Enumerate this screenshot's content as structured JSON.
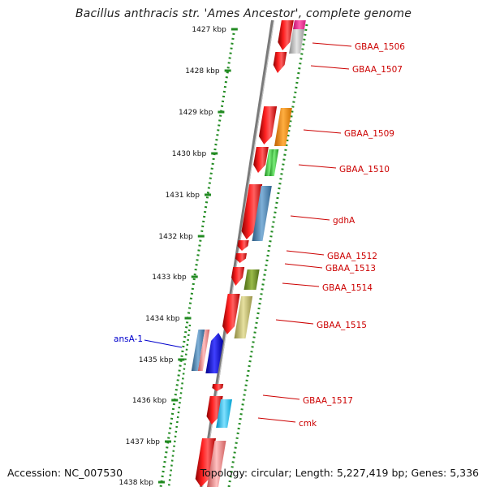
{
  "title": "Bacillus anthracis str. 'Ames Ancestor', complete genome",
  "footer": {
    "accession": "Accession: NC_007530",
    "summary": "Topology: circular; Length: 5,227,419 bp; Genes: 5,336"
  },
  "kbp_ticks": [
    "1427 kbp",
    "1428 kbp",
    "1429 kbp",
    "1430 kbp",
    "1431 kbp",
    "1432 kbp",
    "1433 kbp",
    "1434 kbp",
    "1435 kbp",
    "1436 kbp",
    "1437 kbp",
    "1438 kbp"
  ],
  "gene_labels": [
    {
      "text": "GBAA_1506",
      "color": "#cc0000"
    },
    {
      "text": "GBAA_1507",
      "color": "#cc0000"
    },
    {
      "text": "GBAA_1509",
      "color": "#cc0000"
    },
    {
      "text": "GBAA_1510",
      "color": "#cc0000"
    },
    {
      "text": "gdhA",
      "color": "#cc0000"
    },
    {
      "text": "GBAA_1512",
      "color": "#cc0000"
    },
    {
      "text": "GBAA_1513",
      "color": "#cc0000"
    },
    {
      "text": "GBAA_1514",
      "color": "#cc0000"
    },
    {
      "text": "GBAA_1515",
      "color": "#cc0000"
    },
    {
      "text": "ansA-1",
      "color": "#0000cc"
    },
    {
      "text": "GBAA_1517",
      "color": "#cc0000"
    },
    {
      "text": "cmk",
      "color": "#cc0000"
    }
  ],
  "colors": {
    "backbone": "#808080",
    "tick_dots": "#228b22",
    "forward_gene": "#ff0000",
    "pink_gene": "#ff1493",
    "silver_gene": "#c0c0c0",
    "orange_gene": "#ff8c00",
    "green_gene": "#32cd32",
    "steelblue_gene": "#4682b4",
    "olive_gene": "#6b8e23",
    "khaki_gene": "#bdb76b",
    "salmon_gene": "#f08080",
    "blue_gene": "#0000ff",
    "cyan_gene": "#00bfff"
  }
}
